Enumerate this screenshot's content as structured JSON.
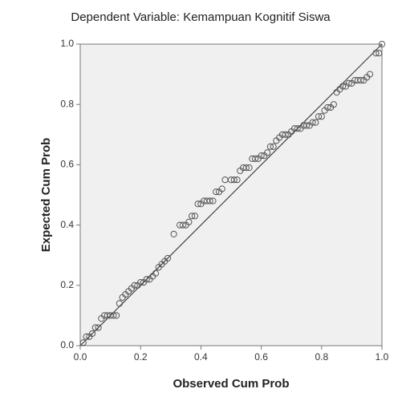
{
  "chart_data": {
    "type": "scatter",
    "title": "Dependent Variable: Kemampuan Kognitif Siswa",
    "xlabel": "Observed Cum Prob",
    "ylabel": "Expected Cum Prob",
    "x": [
      0.01,
      0.02,
      0.03,
      0.04,
      0.05,
      0.06,
      0.07,
      0.08,
      0.09,
      0.1,
      0.11,
      0.12,
      0.13,
      0.14,
      0.15,
      0.16,
      0.17,
      0.18,
      0.19,
      0.2,
      0.21,
      0.22,
      0.23,
      0.24,
      0.25,
      0.26,
      0.27,
      0.28,
      0.29,
      0.31,
      0.33,
      0.34,
      0.35,
      0.36,
      0.37,
      0.38,
      0.39,
      0.4,
      0.41,
      0.42,
      0.43,
      0.44,
      0.45,
      0.46,
      0.47,
      0.48,
      0.5,
      0.51,
      0.52,
      0.53,
      0.54,
      0.55,
      0.56,
      0.57,
      0.58,
      0.59,
      0.6,
      0.61,
      0.62,
      0.63,
      0.64,
      0.65,
      0.66,
      0.67,
      0.68,
      0.69,
      0.7,
      0.71,
      0.72,
      0.73,
      0.74,
      0.75,
      0.76,
      0.77,
      0.78,
      0.79,
      0.8,
      0.81,
      0.82,
      0.83,
      0.84,
      0.85,
      0.86,
      0.87,
      0.88,
      0.89,
      0.9,
      0.91,
      0.92,
      0.93,
      0.94,
      0.95,
      0.96,
      0.98,
      0.99,
      1.0
    ],
    "values": [
      0.01,
      0.03,
      0.03,
      0.04,
      0.06,
      0.06,
      0.09,
      0.1,
      0.1,
      0.1,
      0.1,
      0.1,
      0.14,
      0.16,
      0.17,
      0.18,
      0.19,
      0.2,
      0.2,
      0.21,
      0.21,
      0.22,
      0.22,
      0.23,
      0.24,
      0.26,
      0.27,
      0.28,
      0.29,
      0.37,
      0.4,
      0.4,
      0.4,
      0.41,
      0.43,
      0.43,
      0.47,
      0.47,
      0.48,
      0.48,
      0.48,
      0.48,
      0.51,
      0.51,
      0.52,
      0.55,
      0.55,
      0.55,
      0.55,
      0.58,
      0.59,
      0.59,
      0.59,
      0.62,
      0.62,
      0.62,
      0.63,
      0.63,
      0.64,
      0.66,
      0.66,
      0.68,
      0.69,
      0.7,
      0.7,
      0.7,
      0.71,
      0.72,
      0.72,
      0.72,
      0.73,
      0.73,
      0.73,
      0.74,
      0.74,
      0.76,
      0.76,
      0.78,
      0.79,
      0.79,
      0.8,
      0.84,
      0.85,
      0.86,
      0.86,
      0.87,
      0.87,
      0.88,
      0.88,
      0.88,
      0.88,
      0.89,
      0.9,
      0.97,
      0.97,
      1.0
    ],
    "color": "#555555",
    "xlim": [
      0,
      1
    ],
    "ylim": [
      0,
      1
    ],
    "xticks": [
      {
        "value": 0,
        "label": "0.0"
      },
      0.2,
      0.4,
      0.6,
      0.8,
      {
        "value": 1,
        "label": "1.0"
      }
    ],
    "yticks": [
      {
        "value": 0,
        "label": "0.0"
      },
      0.2,
      0.4,
      0.6,
      0.8,
      {
        "value": 1,
        "label": "1.0"
      }
    ]
  }
}
